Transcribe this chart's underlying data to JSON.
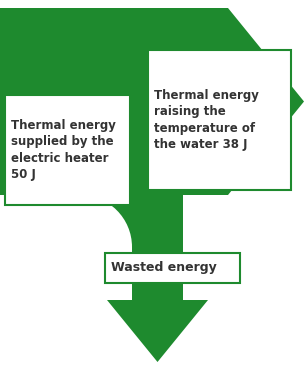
{
  "arrow_color": "#1e8a2e",
  "bg_color": "#ffffff",
  "text_color": "#333333",
  "label1": "Thermal energy\nsupplied by the\nelectric heater\n50 J",
  "label2": "Thermal energy\nraising the\ntemperature of\nthe water 38 J",
  "label3": "Wasted energy",
  "figsize": [
    3.04,
    3.65
  ],
  "dpi": 100
}
